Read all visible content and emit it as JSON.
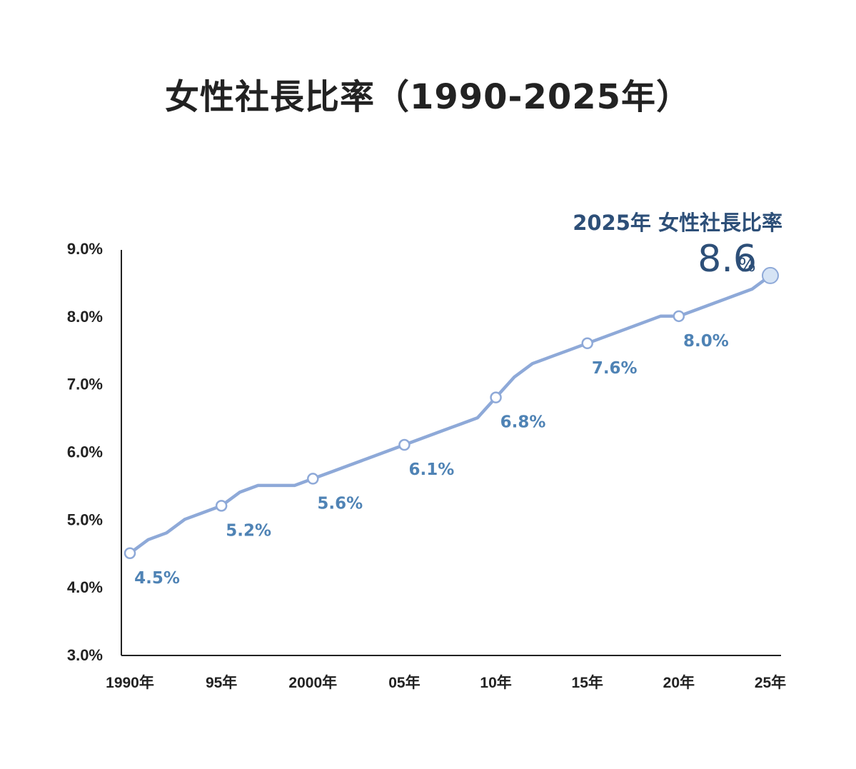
{
  "chart_data": {
    "type": "line",
    "title": "女性社長比率（1990-2025年）",
    "xlabel": "",
    "ylabel": "",
    "x_ticks": [
      "1990年",
      "95年",
      "2000年",
      "05年",
      "10年",
      "15年",
      "20年",
      "25年"
    ],
    "x_range": [
      1990,
      2025
    ],
    "ylim": [
      3.0,
      9.0
    ],
    "y_ticks": [
      "3.0%",
      "4.0%",
      "5.0%",
      "6.0%",
      "7.0%",
      "8.0%",
      "9.0%"
    ],
    "grid": false,
    "series": [
      {
        "color": "#8ea9d8",
        "x": [
          1990,
          1991,
          1992,
          1993,
          1994,
          1995,
          1996,
          1997,
          1998,
          1999,
          2000,
          2001,
          2002,
          2003,
          2004,
          2005,
          2006,
          2007,
          2008,
          2009,
          2010,
          2011,
          2012,
          2013,
          2014,
          2015,
          2016,
          2017,
          2018,
          2019,
          2020,
          2021,
          2022,
          2023,
          2024,
          2025
        ],
        "values": [
          4.5,
          4.7,
          4.8,
          5.0,
          5.1,
          5.2,
          5.4,
          5.5,
          5.5,
          5.5,
          5.6,
          5.7,
          5.8,
          5.9,
          6.0,
          6.1,
          6.2,
          6.3,
          6.4,
          6.5,
          6.8,
          7.1,
          7.3,
          7.4,
          7.5,
          7.6,
          7.7,
          7.8,
          7.9,
          8.0,
          8.0,
          8.1,
          8.2,
          8.3,
          8.4,
          8.6
        ]
      }
    ],
    "markers": [
      {
        "x": 1990,
        "value": 4.5,
        "label": "4.5%"
      },
      {
        "x": 1995,
        "value": 5.2,
        "label": "5.2%"
      },
      {
        "x": 2000,
        "value": 5.6,
        "label": "5.6%"
      },
      {
        "x": 2005,
        "value": 6.1,
        "label": "6.1%"
      },
      {
        "x": 2010,
        "value": 6.8,
        "label": "6.8%"
      },
      {
        "x": 2015,
        "value": 7.6,
        "label": "7.6%"
      },
      {
        "x": 2020,
        "value": 8.0,
        "label": "8.0%"
      }
    ],
    "highlight": {
      "x": 2025,
      "value": 8.6,
      "heading": "2025年 女性社長比率",
      "value_text": "8.6",
      "unit": "%"
    },
    "colors": {
      "line": "#8ea9d8",
      "marker_stroke": "#8ea9d8",
      "highlight_fill": "#d6e4f5",
      "label": "#4f83b5",
      "annotation": "#2d4f78",
      "axis": "#222222"
    }
  }
}
